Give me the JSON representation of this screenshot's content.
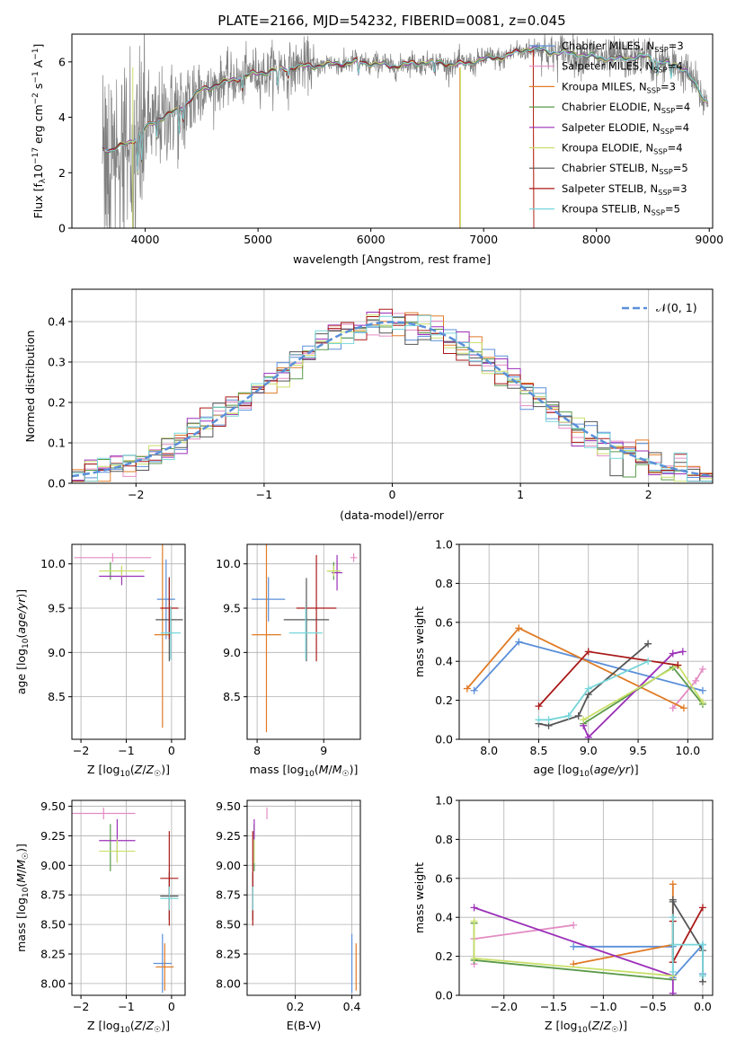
{
  "colors": {
    "chabrier_miles": "#5b8fd9",
    "salpeter_miles": "#e38cc4",
    "kroupa_miles": "#e07b26",
    "chabrier_elodie": "#5a9a4a",
    "salpeter_elodie": "#9b2fb8",
    "kroupa_elodie": "#c9e06a",
    "chabrier_stelib": "#555555",
    "salpeter_stelib": "#aa1a1a",
    "kroupa_stelib": "#77d6d9",
    "gaussian": "#5b8fd9",
    "data": "#808080"
  },
  "chart_data": [
    {
      "id": "spectrum",
      "type": "line",
      "title": "PLATE=2166, MJD=54232, FIBERID=0081, z=0.045",
      "xlabel": "wavelength [Angstrom, rest frame]",
      "ylabel_parts": [
        "Flux [f",
        "λ",
        "10",
        "−17",
        " erg cm",
        "−2",
        " s",
        "−1",
        " A",
        "−1",
        "]"
      ],
      "xlim": [
        3350,
        9030
      ],
      "ylim": [
        0,
        7.0
      ],
      "xticks": [
        4000,
        5000,
        6000,
        7000,
        8000,
        9000
      ],
      "yticks": [
        0,
        2,
        4,
        6
      ],
      "legend_position": "top-right",
      "legend": [
        {
          "key": "chabrier_miles",
          "name": "Chabrier MILES, N",
          "sub": "SSP",
          "tail": "=3"
        },
        {
          "key": "salpeter_miles",
          "name": "Salpeter MILES, N",
          "sub": "SSP",
          "tail": "=4"
        },
        {
          "key": "kroupa_miles",
          "name": "Kroupa MILES, N",
          "sub": "SSP",
          "tail": "=3"
        },
        {
          "key": "chabrier_elodie",
          "name": "Chabrier ELODIE, N",
          "sub": "SSP",
          "tail": "=4"
        },
        {
          "key": "salpeter_elodie",
          "name": "Salpeter ELODIE, N",
          "sub": "SSP",
          "tail": "=4"
        },
        {
          "key": "kroupa_elodie",
          "name": "Kroupa ELODIE, N",
          "sub": "SSP",
          "tail": "=4"
        },
        {
          "key": "chabrier_stelib",
          "name": "Chabrier STELIB, N",
          "sub": "SSP",
          "tail": "=5"
        },
        {
          "key": "salpeter_stelib",
          "name": "Salpeter STELIB, N",
          "sub": "SSP",
          "tail": "=3"
        },
        {
          "key": "kroupa_stelib",
          "name": "Kroupa STELIB, N",
          "sub": "SSP",
          "tail": "=5"
        }
      ],
      "continuum": {
        "wavelength": [
          3620,
          3700,
          3800,
          3900,
          4000,
          4100,
          4300,
          4500,
          4800,
          5000,
          5300,
          5600,
          5900,
          6200,
          6500,
          6800,
          7000,
          7200,
          7400,
          7600,
          7800,
          8000,
          8200,
          8400,
          8600,
          8800,
          8950
        ],
        "flux": [
          2.9,
          2.8,
          3.0,
          3.2,
          3.6,
          3.9,
          4.3,
          5.0,
          5.4,
          5.6,
          5.8,
          5.9,
          6.0,
          5.85,
          6.0,
          5.9,
          6.1,
          6.2,
          6.5,
          6.35,
          6.3,
          6.15,
          6.1,
          6.2,
          6.0,
          5.7,
          4.6
        ]
      }
    },
    {
      "id": "residuals",
      "type": "step",
      "xlabel": "(data-model)/error",
      "ylabel": "Normed distribution",
      "xlim": [
        -2.5,
        2.5
      ],
      "ylim": [
        0,
        0.48
      ],
      "xticks": [
        -2,
        -1,
        0,
        1,
        2
      ],
      "yticks": [
        0.0,
        0.1,
        0.2,
        0.3,
        0.4
      ],
      "grid": true,
      "legend_position": "top-right",
      "gaussian_label": "𝒩(0, 1)",
      "bin_edges_start": -2.5,
      "bin_width": 0.1
    },
    {
      "id": "age_vs_z",
      "type": "errorbar",
      "xlabel": "Z [log10(Z/Z☉)]",
      "ylabel": "age [log10(age/yr)]",
      "xlim": [
        -2.2,
        0.3
      ],
      "ylim": [
        8.02,
        10.22
      ],
      "xticks": [
        -2,
        -1,
        0
      ],
      "yticks": [
        8.5,
        9.0,
        9.5,
        10.0
      ],
      "grid": true,
      "points": [
        {
          "key": "chabrier_miles",
          "x": -0.12,
          "xerr": 0.2,
          "y": 9.6,
          "yerr": 0.45
        },
        {
          "key": "salpeter_miles",
          "x": -1.3,
          "xerr": 0.85,
          "y": 10.07,
          "yerr": 0.05
        },
        {
          "key": "kroupa_miles",
          "x": -0.2,
          "xerr": 0.18,
          "y": 9.2,
          "yerr": 1.05
        },
        {
          "key": "chabrier_elodie",
          "x": -1.35,
          "xerr": 0.0,
          "y": 9.92,
          "yerr": 0.1
        },
        {
          "key": "salpeter_elodie",
          "x": -1.1,
          "xerr": 0.5,
          "y": 9.86,
          "yerr": 0.1
        },
        {
          "key": "kroupa_elodie",
          "x": -1.1,
          "xerr": 0.5,
          "y": 9.92,
          "yerr": 0.06
        },
        {
          "key": "chabrier_stelib",
          "x": -0.05,
          "xerr": 0.3,
          "y": 9.37,
          "yerr": 0.47
        },
        {
          "key": "salpeter_stelib",
          "x": -0.05,
          "xerr": 0.2,
          "y": 9.5,
          "yerr": 0.35
        },
        {
          "key": "kroupa_stelib",
          "x": -0.02,
          "xerr": 0.22,
          "y": 9.22,
          "yerr": 0.3
        }
      ]
    },
    {
      "id": "age_vs_mass",
      "type": "errorbar",
      "xlabel": "mass [log10(M/M☉)]",
      "xlim": [
        7.85,
        9.55
      ],
      "ylim": [
        8.02,
        10.22
      ],
      "xticks": [
        8,
        9
      ],
      "yticks": [
        8.5,
        9.0,
        9.5,
        10.0
      ],
      "grid": true,
      "points": [
        {
          "key": "chabrier_miles",
          "x": 8.17,
          "xerr": 0.25,
          "y": 9.6,
          "yerr": 0.25
        },
        {
          "key": "salpeter_miles",
          "x": 9.45,
          "xerr": 0.05,
          "y": 10.07,
          "yerr": 0.05
        },
        {
          "key": "kroupa_miles",
          "x": 8.14,
          "xerr": 0.22,
          "y": 9.2,
          "yerr": 1.1
        },
        {
          "key": "chabrier_elodie",
          "x": 9.15,
          "xerr": 0.1,
          "y": 9.92,
          "yerr": 0.1
        },
        {
          "key": "salpeter_elodie",
          "x": 9.2,
          "xerr": 0.08,
          "y": 9.9,
          "yerr": 0.2
        },
        {
          "key": "kroupa_elodie",
          "x": 9.15,
          "xerr": 0.1,
          "y": 9.92,
          "yerr": 0.06
        },
        {
          "key": "chabrier_stelib",
          "x": 8.74,
          "xerr": 0.34,
          "y": 9.37,
          "yerr": 0.47
        },
        {
          "key": "salpeter_stelib",
          "x": 8.89,
          "xerr": 0.3,
          "y": 9.5,
          "yerr": 0.6
        },
        {
          "key": "kroupa_stelib",
          "x": 8.73,
          "xerr": 0.25,
          "y": 9.22,
          "yerr": 0.3
        }
      ]
    },
    {
      "id": "weight_vs_age",
      "type": "line",
      "xlabel": "age [log10(age/yr)]",
      "ylabel": "mass weight",
      "xlim": [
        7.7,
        10.25
      ],
      "ylim": [
        0,
        1.0
      ],
      "xticks": [
        8.0,
        8.5,
        9.0,
        9.5,
        10.0
      ],
      "yticks": [
        0.0,
        0.2,
        0.4,
        0.6,
        0.8,
        1.0
      ],
      "grid": true,
      "series": [
        {
          "key": "chabrier_miles",
          "x": [
            7.85,
            8.3,
            10.15
          ],
          "y": [
            0.25,
            0.5,
            0.25
          ]
        },
        {
          "key": "salpeter_miles",
          "x": [
            9.85,
            10.08,
            10.15
          ],
          "y": [
            0.16,
            0.3,
            0.36
          ]
        },
        {
          "key": "kroupa_miles",
          "x": [
            7.78,
            8.3,
            9.96
          ],
          "y": [
            0.26,
            0.57,
            0.16
          ]
        },
        {
          "key": "chabrier_elodie",
          "x": [
            8.95,
            9.85,
            10.15
          ],
          "y": [
            0.08,
            0.37,
            0.18
          ]
        },
        {
          "key": "salpeter_elodie",
          "x": [
            8.95,
            9.0,
            9.85,
            9.95
          ],
          "y": [
            0.07,
            0.01,
            0.44,
            0.45
          ]
        },
        {
          "key": "kroupa_elodie",
          "x": [
            8.95,
            9.9,
            10.15
          ],
          "y": [
            0.1,
            0.38,
            0.19
          ]
        },
        {
          "key": "chabrier_stelib",
          "x": [
            8.5,
            8.6,
            8.9,
            9.0,
            9.6
          ],
          "y": [
            0.08,
            0.07,
            0.12,
            0.23,
            0.49
          ]
        },
        {
          "key": "salpeter_stelib",
          "x": [
            8.5,
            9.0,
            9.9
          ],
          "y": [
            0.17,
            0.45,
            0.38
          ]
        },
        {
          "key": "kroupa_stelib",
          "x": [
            8.5,
            8.6,
            8.8,
            9.0,
            9.6
          ],
          "y": [
            0.1,
            0.1,
            0.12,
            0.26,
            0.4
          ]
        }
      ]
    },
    {
      "id": "mass_vs_z",
      "type": "errorbar",
      "xlabel": "Z [log10(Z/Z☉)]",
      "ylabel": "mass [log10(M/M☉)]",
      "xlim": [
        -2.2,
        0.3
      ],
      "ylim": [
        7.9,
        9.55
      ],
      "xticks": [
        -2,
        -1,
        0
      ],
      "yticks": [
        8.0,
        8.25,
        8.5,
        8.75,
        9.0,
        9.25,
        9.5
      ],
      "grid": true,
      "points": [
        {
          "key": "chabrier_miles",
          "x": -0.2,
          "xerr": 0.2,
          "y": 8.17,
          "yerr": 0.25
        },
        {
          "key": "salpeter_miles",
          "x": -1.5,
          "xerr": 0.7,
          "y": 9.44,
          "yerr": 0.05
        },
        {
          "key": "kroupa_miles",
          "x": -0.15,
          "xerr": 0.2,
          "y": 8.14,
          "yerr": 0.2
        },
        {
          "key": "chabrier_elodie",
          "x": -1.35,
          "xerr": 0.0,
          "y": 9.15,
          "yerr": 0.2
        },
        {
          "key": "salpeter_elodie",
          "x": -1.2,
          "xerr": 0.4,
          "y": 9.21,
          "yerr": 0.18
        },
        {
          "key": "kroupa_elodie",
          "x": -1.2,
          "xerr": 0.4,
          "y": 9.12,
          "yerr": 0.1
        },
        {
          "key": "chabrier_stelib",
          "x": -0.05,
          "xerr": 0.2,
          "y": 8.74,
          "yerr": 0.2
        },
        {
          "key": "salpeter_stelib",
          "x": -0.05,
          "xerr": 0.2,
          "y": 8.89,
          "yerr": 0.4
        },
        {
          "key": "kroupa_stelib",
          "x": -0.05,
          "xerr": 0.2,
          "y": 8.72,
          "yerr": 0.1
        }
      ]
    },
    {
      "id": "mass_vs_ebv",
      "type": "errorbar",
      "xlabel": "E(B-V)",
      "xlim": [
        0.03,
        0.43
      ],
      "ylim": [
        7.9,
        9.55
      ],
      "xticks": [
        0.2,
        0.4
      ],
      "yticks": [
        8.0,
        8.25,
        8.5,
        8.75,
        9.0,
        9.25,
        9.5
      ],
      "grid": true,
      "points": [
        {
          "key": "chabrier_miles",
          "x": 0.4,
          "xerr": 0.0,
          "y": 8.17,
          "yerr": 0.25
        },
        {
          "key": "salpeter_miles",
          "x": 0.1,
          "xerr": 0.0,
          "y": 9.44,
          "yerr": 0.05
        },
        {
          "key": "kroupa_miles",
          "x": 0.415,
          "xerr": 0.0,
          "y": 8.14,
          "yerr": 0.2
        },
        {
          "key": "chabrier_elodie",
          "x": 0.055,
          "xerr": 0.0,
          "y": 9.15,
          "yerr": 0.2
        },
        {
          "key": "salpeter_elodie",
          "x": 0.055,
          "xerr": 0.0,
          "y": 9.21,
          "yerr": 0.18
        },
        {
          "key": "kroupa_elodie",
          "x": 0.055,
          "xerr": 0.0,
          "y": 9.12,
          "yerr": 0.1
        },
        {
          "key": "chabrier_stelib",
          "x": 0.05,
          "xerr": 0.0,
          "y": 8.74,
          "yerr": 0.2
        },
        {
          "key": "salpeter_stelib",
          "x": 0.05,
          "xerr": 0.0,
          "y": 8.89,
          "yerr": 0.4
        },
        {
          "key": "kroupa_stelib",
          "x": 0.05,
          "xerr": 0.0,
          "y": 8.72,
          "yerr": 0.1
        }
      ]
    },
    {
      "id": "weight_vs_z",
      "type": "line",
      "xlabel": "Z [log10(Z/Z☉)]",
      "ylabel": "mass weight",
      "xlim": [
        -2.45,
        0.1
      ],
      "ylim": [
        0,
        1.0
      ],
      "xticks": [
        -2.0,
        -1.5,
        -1.0,
        -0.5,
        0.0
      ],
      "yticks": [
        0.0,
        0.2,
        0.4,
        0.6,
        0.8,
        1.0
      ],
      "grid": true,
      "series": [
        {
          "key": "chabrier_miles",
          "x": [
            -1.3,
            -0.3,
            -0.3,
            0.0,
            0.0
          ],
          "y": [
            0.25,
            0.25,
            0.09,
            0.26,
            0.11
          ]
        },
        {
          "key": "salpeter_miles",
          "x": [
            -2.3,
            -2.3,
            -1.3
          ],
          "y": [
            0.16,
            0.29,
            0.36
          ]
        },
        {
          "key": "kroupa_miles",
          "x": [
            -1.3,
            -0.3,
            -0.3
          ],
          "y": [
            0.16,
            0.26,
            0.57
          ]
        },
        {
          "key": "chabrier_elodie",
          "x": [
            -2.3,
            -2.3,
            -0.3
          ],
          "y": [
            0.37,
            0.18,
            0.08
          ]
        },
        {
          "key": "salpeter_elodie",
          "x": [
            -2.3,
            -0.3,
            -0.3
          ],
          "y": [
            0.45,
            0.1,
            0.01
          ]
        },
        {
          "key": "kroupa_elodie",
          "x": [
            -2.3,
            -2.3,
            -0.3
          ],
          "y": [
            0.38,
            0.19,
            0.1
          ]
        },
        {
          "key": "chabrier_stelib",
          "x": [
            -0.3,
            -0.3,
            -0.3,
            0.0,
            0.0
          ],
          "y": [
            0.49,
            0.17,
            0.48,
            0.23,
            0.07
          ]
        },
        {
          "key": "salpeter_stelib",
          "x": [
            -0.3,
            -0.3,
            0.0
          ],
          "y": [
            0.38,
            0.17,
            0.45
          ]
        },
        {
          "key": "kroupa_stelib",
          "x": [
            -0.3,
            -0.3,
            -0.3,
            0.0,
            0.0
          ],
          "y": [
            0.4,
            0.12,
            0.26,
            0.26,
            0.1
          ]
        }
      ]
    }
  ]
}
